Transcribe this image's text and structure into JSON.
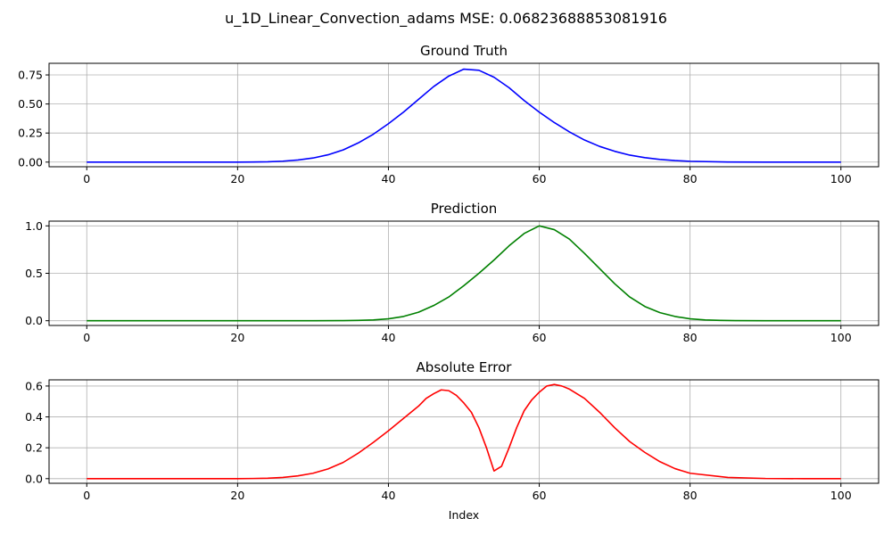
{
  "figure": {
    "suptitle": "u_1D_Linear_Convection_adams MSE: 0.06823688853081916"
  },
  "chart_data": [
    {
      "type": "line",
      "title": "Ground Truth",
      "xlabel": "",
      "ylabel": "",
      "xlim": [
        -5,
        105
      ],
      "ylim": [
        -0.04,
        0.85
      ],
      "xticks": [
        0,
        20,
        40,
        60,
        80,
        100
      ],
      "xtick_labels": [
        "0",
        "20",
        "40",
        "60",
        "80",
        "100"
      ],
      "yticks": [
        0.0,
        0.25,
        0.5,
        0.75
      ],
      "ytick_labels": [
        "0.00",
        "0.25",
        "0.50",
        "0.75"
      ],
      "grid": true,
      "series": [
        {
          "color": "#0000ff",
          "x": [
            0,
            5,
            10,
            15,
            20,
            22,
            24,
            26,
            28,
            30,
            32,
            34,
            36,
            38,
            40,
            42,
            44,
            46,
            48,
            50,
            52,
            54,
            56,
            58,
            60,
            62,
            64,
            66,
            68,
            70,
            72,
            74,
            76,
            78,
            80,
            85,
            90,
            95,
            100
          ],
          "y": [
            0,
            0,
            0,
            0,
            0,
            0.001,
            0.003,
            0.008,
            0.018,
            0.035,
            0.063,
            0.105,
            0.165,
            0.24,
            0.33,
            0.43,
            0.54,
            0.65,
            0.74,
            0.8,
            0.79,
            0.73,
            0.64,
            0.53,
            0.43,
            0.34,
            0.26,
            0.19,
            0.135,
            0.093,
            0.06,
            0.038,
            0.023,
            0.013,
            0.007,
            0.001,
            0,
            0,
            0
          ]
        }
      ]
    },
    {
      "type": "line",
      "title": "Prediction",
      "xlabel": "",
      "ylabel": "",
      "xlim": [
        -5,
        105
      ],
      "ylim": [
        -0.05,
        1.05
      ],
      "xticks": [
        0,
        20,
        40,
        60,
        80,
        100
      ],
      "xtick_labels": [
        "0",
        "20",
        "40",
        "60",
        "80",
        "100"
      ],
      "yticks": [
        0.0,
        0.5,
        1.0
      ],
      "ytick_labels": [
        "0.0",
        "0.5",
        "1.0"
      ],
      "grid": true,
      "series": [
        {
          "color": "#008000",
          "x": [
            0,
            5,
            10,
            15,
            20,
            25,
            30,
            34,
            36,
            38,
            40,
            42,
            44,
            46,
            48,
            50,
            52,
            54,
            56,
            58,
            60,
            62,
            64,
            66,
            68,
            70,
            72,
            74,
            76,
            78,
            80,
            82,
            84,
            86,
            90,
            95,
            100
          ],
          "y": [
            0,
            0,
            0,
            0,
            0,
            0,
            0,
            0.001,
            0.003,
            0.008,
            0.02,
            0.045,
            0.09,
            0.16,
            0.25,
            0.37,
            0.5,
            0.64,
            0.79,
            0.92,
            1.0,
            0.96,
            0.86,
            0.71,
            0.55,
            0.39,
            0.25,
            0.15,
            0.085,
            0.045,
            0.02,
            0.008,
            0.003,
            0.001,
            0,
            0,
            0
          ]
        }
      ]
    },
    {
      "type": "line",
      "title": "Absolute Error",
      "xlabel": "Index",
      "ylabel": "",
      "xlim": [
        -5,
        105
      ],
      "ylim": [
        -0.03,
        0.64
      ],
      "xticks": [
        0,
        20,
        40,
        60,
        80,
        100
      ],
      "xtick_labels": [
        "0",
        "20",
        "40",
        "60",
        "80",
        "100"
      ],
      "yticks": [
        0.0,
        0.2,
        0.4,
        0.6
      ],
      "ytick_labels": [
        "0.0",
        "0.2",
        "0.4",
        "0.6"
      ],
      "grid": true,
      "series": [
        {
          "color": "#ff0000",
          "x": [
            0,
            5,
            10,
            15,
            20,
            22,
            24,
            26,
            28,
            30,
            32,
            34,
            36,
            38,
            40,
            42,
            44,
            45,
            46,
            47,
            48,
            49,
            50,
            51,
            52,
            53,
            54,
            55,
            56,
            57,
            58,
            59,
            60,
            61,
            62,
            63,
            64,
            66,
            68,
            70,
            72,
            74,
            76,
            78,
            80,
            85,
            90,
            95,
            100
          ],
          "y": [
            0,
            0,
            0,
            0,
            0,
            0.001,
            0.003,
            0.008,
            0.018,
            0.035,
            0.063,
            0.105,
            0.165,
            0.235,
            0.31,
            0.39,
            0.47,
            0.52,
            0.55,
            0.575,
            0.57,
            0.54,
            0.49,
            0.43,
            0.33,
            0.2,
            0.05,
            0.08,
            0.2,
            0.33,
            0.44,
            0.51,
            0.56,
            0.6,
            0.61,
            0.6,
            0.58,
            0.52,
            0.43,
            0.33,
            0.24,
            0.17,
            0.11,
            0.065,
            0.035,
            0.008,
            0.001,
            0,
            0
          ]
        }
      ]
    }
  ]
}
